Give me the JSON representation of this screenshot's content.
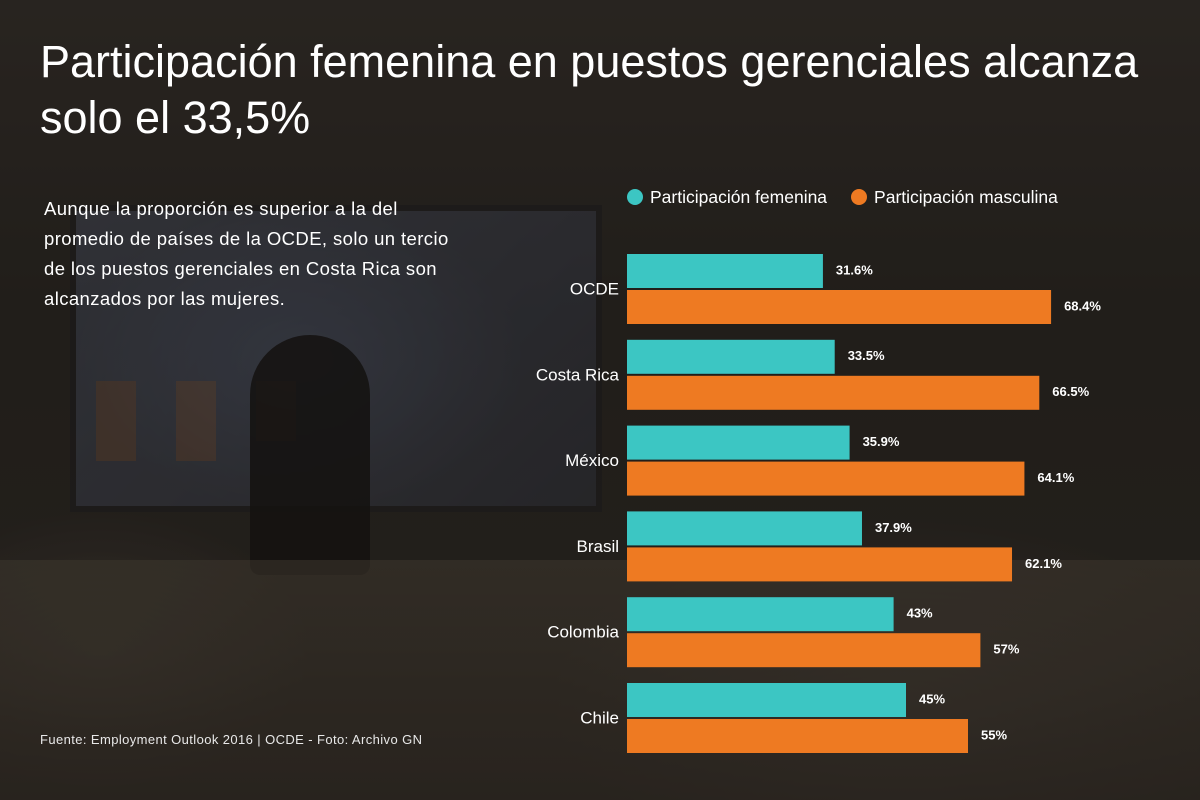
{
  "title": "Participación femenina en puestos gerenciales alcanza solo el 33,5%",
  "subtitle": "Aunque la proporción es superior a la del promedio de países de la OCDE, solo un tercio de los puestos gerenciales en Costa Rica son alcanzados por las mujeres.",
  "source": "Fuente: Employment Outlook 2016 | OCDE - Foto: Archivo GN",
  "colors": {
    "female": "#3cc6c3",
    "male": "#ee7a22",
    "text": "#ffffff"
  },
  "chart_data": {
    "type": "bar",
    "orientation": "horizontal",
    "title": "Participación femenina en puestos gerenciales alcanza solo el 33,5%",
    "xlabel": "",
    "ylabel": "",
    "xlim": [
      0,
      100
    ],
    "grid": false,
    "legend_position": "top",
    "categories": [
      "OCDE",
      "Costa Rica",
      "México",
      "Brasil",
      "Colombia",
      "Chile"
    ],
    "series": [
      {
        "name": "Participación femenina",
        "values": [
          31.6,
          33.5,
          35.9,
          37.9,
          43,
          45
        ],
        "labels": [
          "31.6%",
          "33.5%",
          "35.9%",
          "37.9%",
          "43%",
          "45%"
        ]
      },
      {
        "name": "Participación masculina",
        "values": [
          68.4,
          66.5,
          64.1,
          62.1,
          57,
          55
        ],
        "labels": [
          "68.4%",
          "66.5%",
          "64.1%",
          "62.1%",
          "57%",
          "55%"
        ]
      }
    ]
  }
}
